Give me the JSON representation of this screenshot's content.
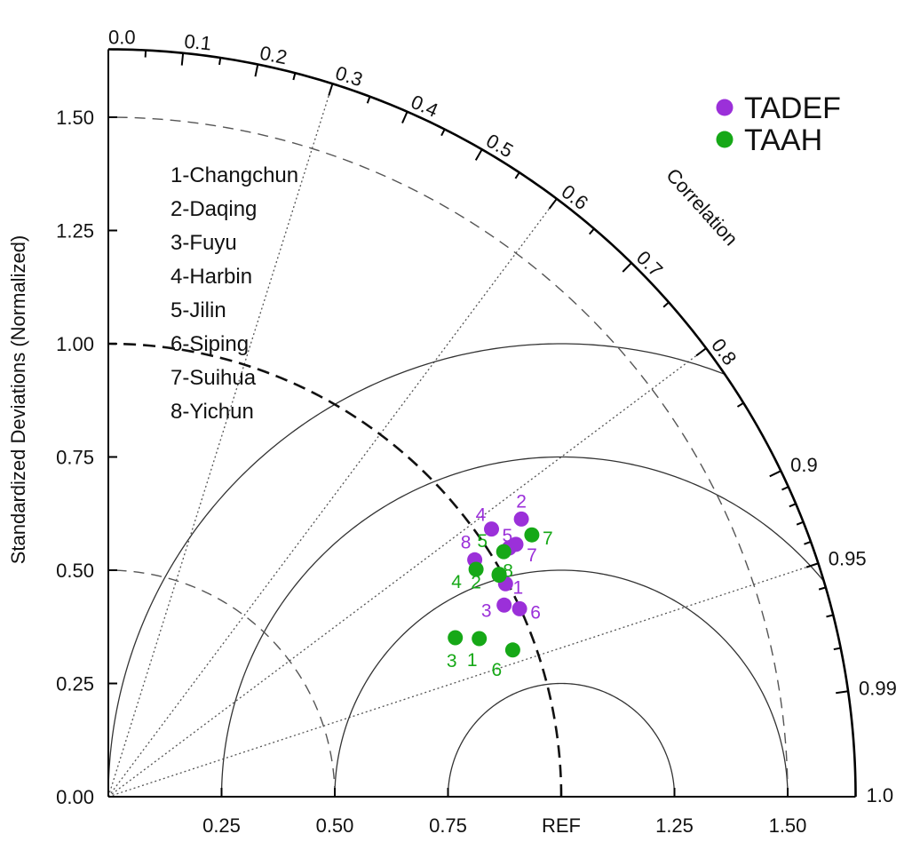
{
  "chart_data": {
    "type": "scatter",
    "subtype": "taylor-diagram",
    "ylabel": "Standardized Deviations (Normalized)",
    "corr_axis_label": "Correlation",
    "ref_label": "REF",
    "std_range": [
      0,
      1.65
    ],
    "x_ticks": [
      {
        "value": 0.0,
        "label": "0.00"
      },
      {
        "value": 0.25,
        "label": "0.25"
      },
      {
        "value": 0.5,
        "label": "0.50"
      },
      {
        "value": 0.75,
        "label": "0.75"
      },
      {
        "value": 1.0,
        "label": "REF"
      },
      {
        "value": 1.25,
        "label": "1.25"
      },
      {
        "value": 1.5,
        "label": "1.50"
      }
    ],
    "y_ticks": [
      {
        "value": 0.0,
        "label": "0.00"
      },
      {
        "value": 0.25,
        "label": "0.25"
      },
      {
        "value": 0.5,
        "label": "0.50"
      },
      {
        "value": 0.75,
        "label": "0.75"
      },
      {
        "value": 1.0,
        "label": "1.00"
      },
      {
        "value": 1.25,
        "label": "1.25"
      },
      {
        "value": 1.5,
        "label": "1.50"
      }
    ],
    "corr_ticks": [
      {
        "value": 0.0,
        "label": "0.0"
      },
      {
        "value": 0.1,
        "label": "0.1"
      },
      {
        "value": 0.2,
        "label": "0.2"
      },
      {
        "value": 0.3,
        "label": "0.3"
      },
      {
        "value": 0.4,
        "label": "0.4"
      },
      {
        "value": 0.5,
        "label": "0.5"
      },
      {
        "value": 0.6,
        "label": "0.6"
      },
      {
        "value": 0.7,
        "label": "0.7"
      },
      {
        "value": 0.8,
        "label": "0.8"
      },
      {
        "value": 0.9,
        "label": "0.9"
      },
      {
        "value": 0.95,
        "label": "0.95"
      },
      {
        "value": 0.99,
        "label": "0.99"
      },
      {
        "value": 1.0,
        "label": "1.0"
      }
    ],
    "corr_minor_ticks": [
      0.05,
      0.15,
      0.25,
      0.35,
      0.45,
      0.55,
      0.65,
      0.75,
      0.85,
      0.91,
      0.92,
      0.93,
      0.94,
      0.96,
      0.97,
      0.98
    ],
    "corr_radial_lines": [
      0.3,
      0.6,
      0.8,
      0.95
    ],
    "std_dashed_arcs": [
      0.5,
      1.5
    ],
    "ref_arc": 1.0,
    "rms_arcs": [
      0.25,
      0.5,
      0.75,
      1.0
    ],
    "legend": [
      {
        "name": "TADEF",
        "color": "#9b30d9"
      },
      {
        "name": "TAAH",
        "color": "#16a817"
      }
    ],
    "stations": [
      "1-Changchun",
      "2-Daqing",
      "3-Fuyu",
      "4-Harbin",
      "5-Jilin",
      "6-Siping",
      "7-Suihua",
      "8-Yichun"
    ],
    "series": [
      {
        "name": "TADEF",
        "color": "#9b30d9",
        "points": [
          {
            "label": "1",
            "x": 0.877,
            "y": 0.47
          },
          {
            "label": "2",
            "x": 0.912,
            "y": 0.613
          },
          {
            "label": "3",
            "x": 0.874,
            "y": 0.423
          },
          {
            "label": "4",
            "x": 0.846,
            "y": 0.591
          },
          {
            "label": "5",
            "x": 0.885,
            "y": 0.549
          },
          {
            "label": "6",
            "x": 0.908,
            "y": 0.415
          },
          {
            "label": "7",
            "x": 0.9,
            "y": 0.557
          },
          {
            "label": "8",
            "x": 0.809,
            "y": 0.523
          }
        ]
      },
      {
        "name": "TAAH",
        "color": "#16a817",
        "points": [
          {
            "label": "1",
            "x": 0.819,
            "y": 0.349
          },
          {
            "label": "2",
            "x": 0.863,
            "y": 0.489
          },
          {
            "label": "3",
            "x": 0.766,
            "y": 0.351
          },
          {
            "label": "4",
            "x": 0.812,
            "y": 0.502
          },
          {
            "label": "5",
            "x": 0.873,
            "y": 0.541
          },
          {
            "label": "6",
            "x": 0.893,
            "y": 0.324
          },
          {
            "label": "7",
            "x": 0.935,
            "y": 0.578
          },
          {
            "label": "8",
            "x": 0.863,
            "y": 0.491
          }
        ]
      }
    ]
  }
}
